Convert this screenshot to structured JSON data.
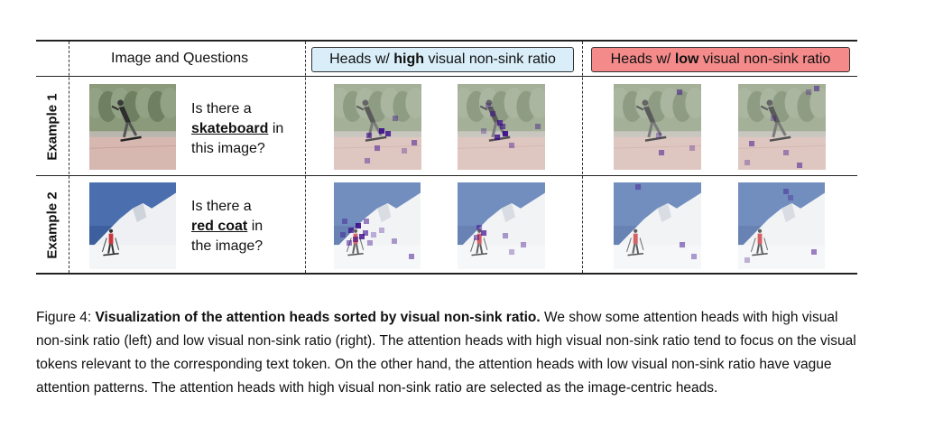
{
  "header": {
    "col_image": "Image and Questions",
    "col_high_prefix": "Heads w/ ",
    "col_high_bold": "high",
    "col_high_suffix": " visual non-sink ratio",
    "col_low_prefix": "Heads w/ ",
    "col_low_bold": "low",
    "col_low_suffix": " visual non-sink ratio",
    "high_bg": "#d9eef8",
    "low_bg": "#f48a8a"
  },
  "rows": [
    {
      "label": "Example 1",
      "scene": "skateboard",
      "q_pre": "Is there a",
      "q_key": "skateboard",
      "q_mid": " in",
      "q_post": "this image?"
    },
    {
      "label": "Example 2",
      "scene": "skier",
      "q_pre": "Is there a",
      "q_key": "red coat",
      "q_mid": " in",
      "q_post": "the image?"
    }
  ],
  "caption": {
    "label": "Figure 4: ",
    "title": "Visualization of the attention heads sorted by visual non-sink ratio.",
    "body": " We show some attention heads with high visual non-sink ratio (left) and low visual non-sink ratio (right). The attention heads with high visual non-sink ratio tend to focus on the visual tokens relevant to the corresponding text token. On the other hand, the attention heads with low visual non-sink ratio have vague attention patterns. The attention heads with high visual non-sink ratio are selected as the image-centric heads."
  }
}
